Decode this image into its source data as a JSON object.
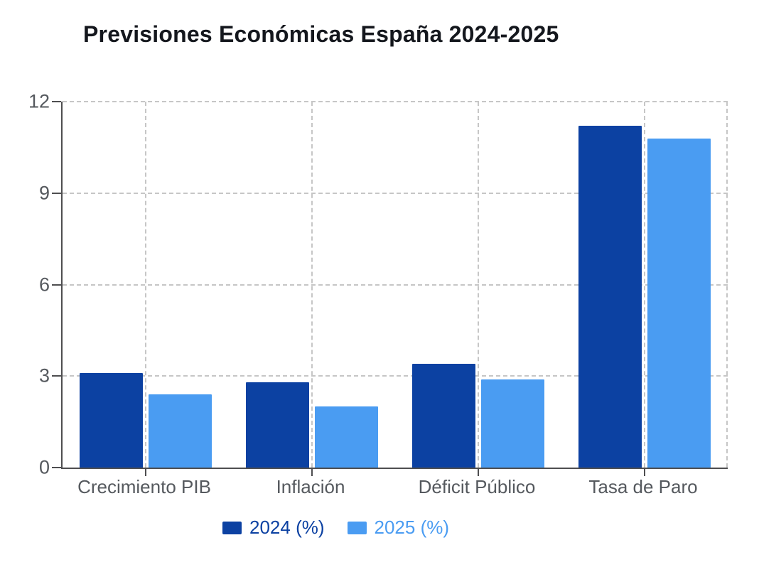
{
  "title": "Previsiones Económicas España 2024-2025",
  "chart_data": {
    "type": "bar",
    "title": "Previsiones Económicas España 2024-2025",
    "categories": [
      "Crecimiento PIB",
      "Inflación",
      "Déficit Público",
      "Tasa de Paro"
    ],
    "series": [
      {
        "name": "2024 (%)",
        "color": "#0c41a2",
        "values": [
          3.1,
          2.8,
          3.4,
          11.2
        ]
      },
      {
        "name": "2025 (%)",
        "color": "#4a9cf2",
        "values": [
          2.4,
          2.0,
          2.9,
          10.8
        ]
      }
    ],
    "xlabel": "",
    "ylabel": "",
    "ylim": [
      0,
      12
    ],
    "yticks": [
      0,
      3,
      6,
      9,
      12
    ],
    "grid": true,
    "grid_style": "dashed",
    "legend_position": "bottom"
  },
  "colors": {
    "background": "#ffffff",
    "title": "#14171d",
    "axis": "#4e4e50",
    "grid": "#c6c6c6",
    "tick_label": "#55595e",
    "series_2024": "#0c41a2",
    "series_2025": "#4a9cf2"
  }
}
